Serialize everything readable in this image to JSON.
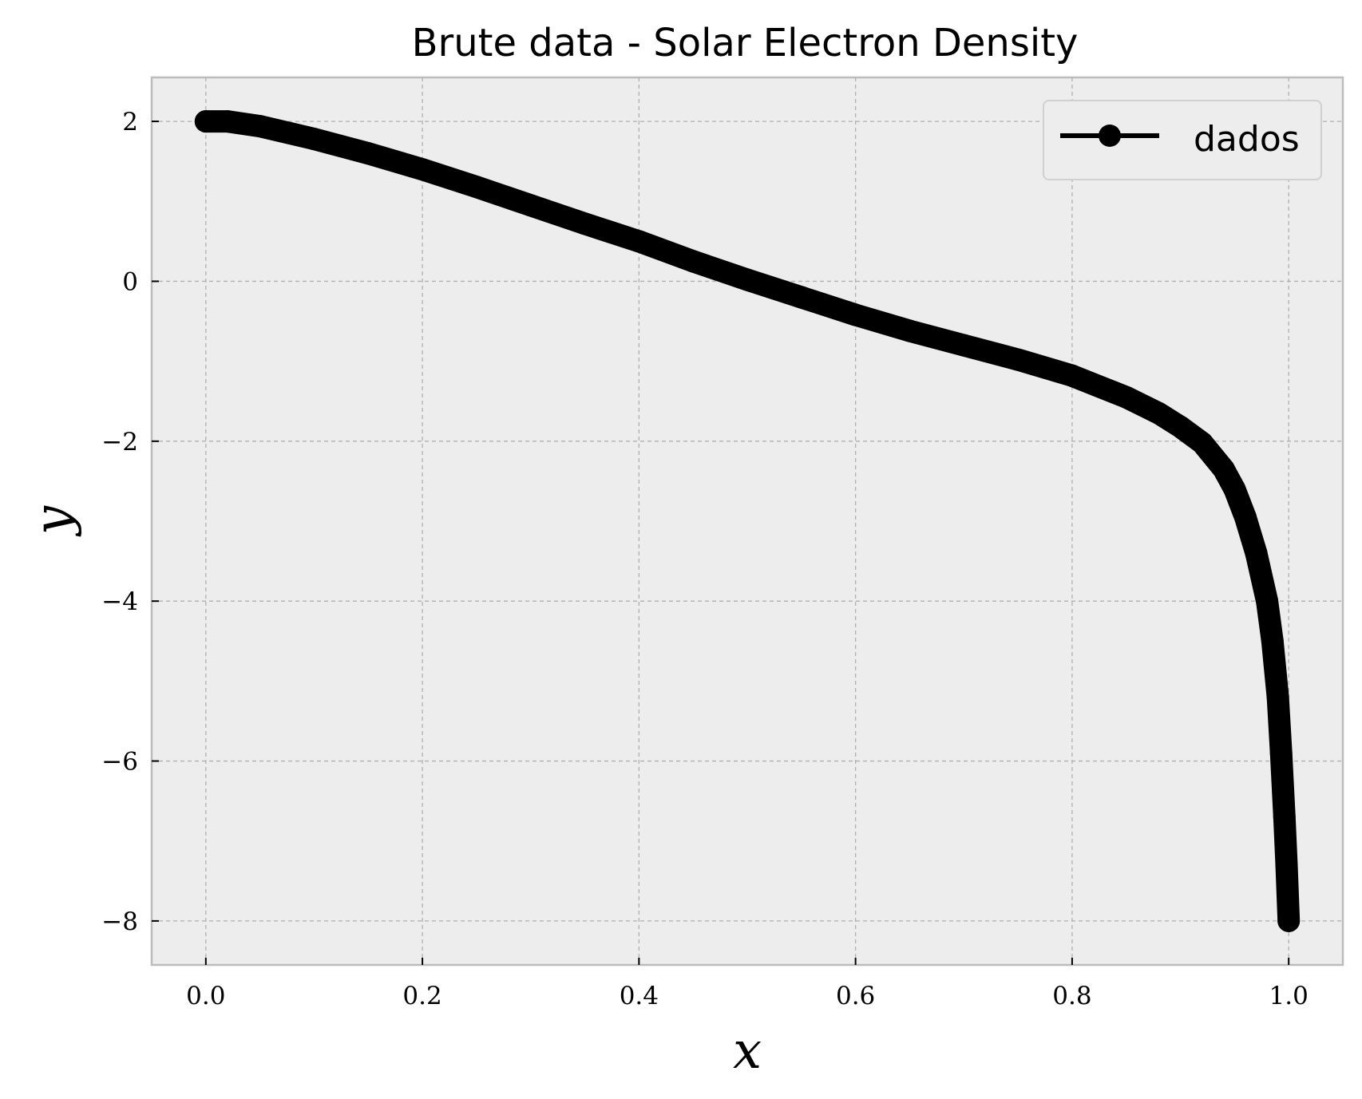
{
  "chart_data": {
    "type": "line",
    "title": "Brute data - Solar Electron Density",
    "xlabel": "x",
    "ylabel": "y",
    "xlim": [
      -0.05,
      1.05
    ],
    "ylim": [
      -8.55,
      2.55
    ],
    "x_ticks": [
      0.0,
      0.2,
      0.4,
      0.6,
      0.8,
      1.0
    ],
    "x_tick_labels": [
      "0.0",
      "0.2",
      "0.4",
      "0.6",
      "0.8",
      "1.0"
    ],
    "y_ticks": [
      2,
      0,
      -2,
      -4,
      -6,
      -8
    ],
    "y_tick_labels": [
      "2",
      "0",
      "−2",
      "−4",
      "−6",
      "−8"
    ],
    "grid": true,
    "legend_placement": "top-right",
    "colors": {
      "background": "#ededed",
      "line": "#000000",
      "grid": "#b0b0b0",
      "frame": "#bcbcbc"
    },
    "series": [
      {
        "name": "dados",
        "x": [
          0.0,
          0.02,
          0.05,
          0.1,
          0.15,
          0.2,
          0.25,
          0.3,
          0.35,
          0.4,
          0.45,
          0.5,
          0.55,
          0.6,
          0.65,
          0.7,
          0.75,
          0.8,
          0.85,
          0.88,
          0.9,
          0.92,
          0.94,
          0.95,
          0.96,
          0.97,
          0.98,
          0.985,
          0.99,
          0.993,
          0.996,
          0.998,
          1.0
        ],
        "y": [
          2.0,
          2.0,
          1.94,
          1.78,
          1.6,
          1.4,
          1.18,
          0.95,
          0.72,
          0.5,
          0.25,
          0.02,
          -0.2,
          -0.42,
          -0.62,
          -0.8,
          -0.98,
          -1.18,
          -1.45,
          -1.65,
          -1.82,
          -2.02,
          -2.35,
          -2.6,
          -2.95,
          -3.4,
          -4.0,
          -4.5,
          -5.2,
          -5.9,
          -6.7,
          -7.3,
          -8.0
        ]
      }
    ]
  }
}
